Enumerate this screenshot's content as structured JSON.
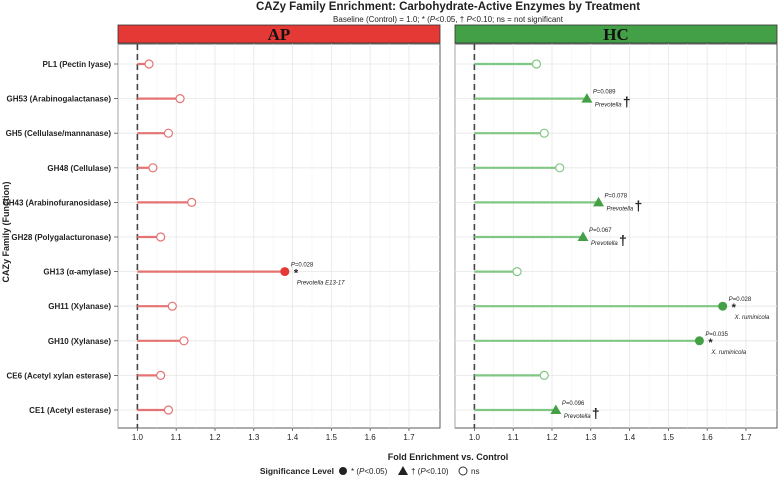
{
  "chart_data": {
    "type": "lollipop",
    "title": "CAZy Family Enrichment: Carbohydrate-Active Enzymes by Treatment",
    "subtitle": {
      "prefix": "Baseline (Control) = 1.0; * (",
      "p1": "P",
      "mid1": "<0.05, † ",
      "p2": "P",
      "mid2": "<0.10; ns = not significant"
    },
    "xlabel": "Fold Enrichment vs. Control",
    "ylabel": "CAZy Family (Function)",
    "xlim": [
      0.95,
      1.78
    ],
    "x_ticks": [
      "1.0",
      "1.1",
      "1.2",
      "1.3",
      "1.4",
      "1.5",
      "1.6",
      "1.7"
    ],
    "x_tick_values": [
      1.0,
      1.1,
      1.2,
      1.3,
      1.4,
      1.5,
      1.6,
      1.7
    ],
    "baseline": 1.0,
    "grid": true,
    "categories": [
      "PL1 (Pectin lyase)",
      "GH53 (Arabinogalactanase)",
      "GH5 (Cellulase/mannanase)",
      "GH48 (Cellulase)",
      "GH43 (Arabinofuranosidase)",
      "GH28 (Polygalacturonase)",
      "GH13 (α-amylase)",
      "GH11 (Xylanase)",
      "GH10 (Xylanase)",
      "CE6 (Acetyl xylan esterase)",
      "CE1 (Acetyl esterase)"
    ],
    "panels": [
      {
        "name": "AP",
        "strip_color": "#e53935",
        "line_color": "#e57373",
        "point_color": "#e53935",
        "values": [
          1.03,
          1.11,
          1.08,
          1.04,
          1.14,
          1.06,
          1.38,
          1.09,
          1.12,
          1.06,
          1.08
        ],
        "significance": [
          "ns",
          "ns",
          "ns",
          "ns",
          "ns",
          "ns",
          "sig",
          "ns",
          "ns",
          "ns",
          "ns"
        ],
        "annotations": [
          {
            "row": 6,
            "p": "P",
            "pval": "=0.028",
            "symbol": "*",
            "taxon": "Prevotella E13-17"
          }
        ]
      },
      {
        "name": "HC",
        "strip_color": "#43a047",
        "line_color": "#81c784",
        "point_color": "#43a047",
        "values": [
          1.16,
          1.29,
          1.18,
          1.22,
          1.32,
          1.28,
          1.11,
          1.64,
          1.58,
          1.18,
          1.21
        ],
        "significance": [
          "ns",
          "trend",
          "ns",
          "ns",
          "trend",
          "trend",
          "ns",
          "sig",
          "sig",
          "ns",
          "trend"
        ],
        "annotations": [
          {
            "row": 1,
            "p": "P",
            "pval": "=0.089",
            "symbol": "†",
            "taxon": "Prevotella"
          },
          {
            "row": 4,
            "p": "P",
            "pval": "=0.078",
            "symbol": "†",
            "taxon": "Prevotella"
          },
          {
            "row": 5,
            "p": "P",
            "pval": "=0.067",
            "symbol": "†",
            "taxon": "Prevotella"
          },
          {
            "row": 7,
            "p": "P",
            "pval": "=0.028",
            "symbol": "*",
            "taxon": "X. ruminicola"
          },
          {
            "row": 8,
            "p": "P",
            "pval": "=0.035",
            "symbol": "*",
            "taxon": "X. ruminicola"
          },
          {
            "row": 10,
            "p": "P",
            "pval": "=0.096",
            "symbol": "†",
            "taxon": "Prevotella"
          }
        ]
      }
    ],
    "legend": {
      "title": "Significance Level",
      "position": "bottom",
      "items": [
        {
          "shape": "circle-filled",
          "label": "* (P<0.05)",
          "parts": [
            "* (",
            "P",
            "<0.05)"
          ]
        },
        {
          "shape": "triangle",
          "label": "† (P<0.10)",
          "parts": [
            "† (",
            "P",
            "<0.10)"
          ]
        },
        {
          "shape": "circle-open",
          "label": "ns",
          "parts": [
            "ns"
          ]
        }
      ]
    }
  }
}
